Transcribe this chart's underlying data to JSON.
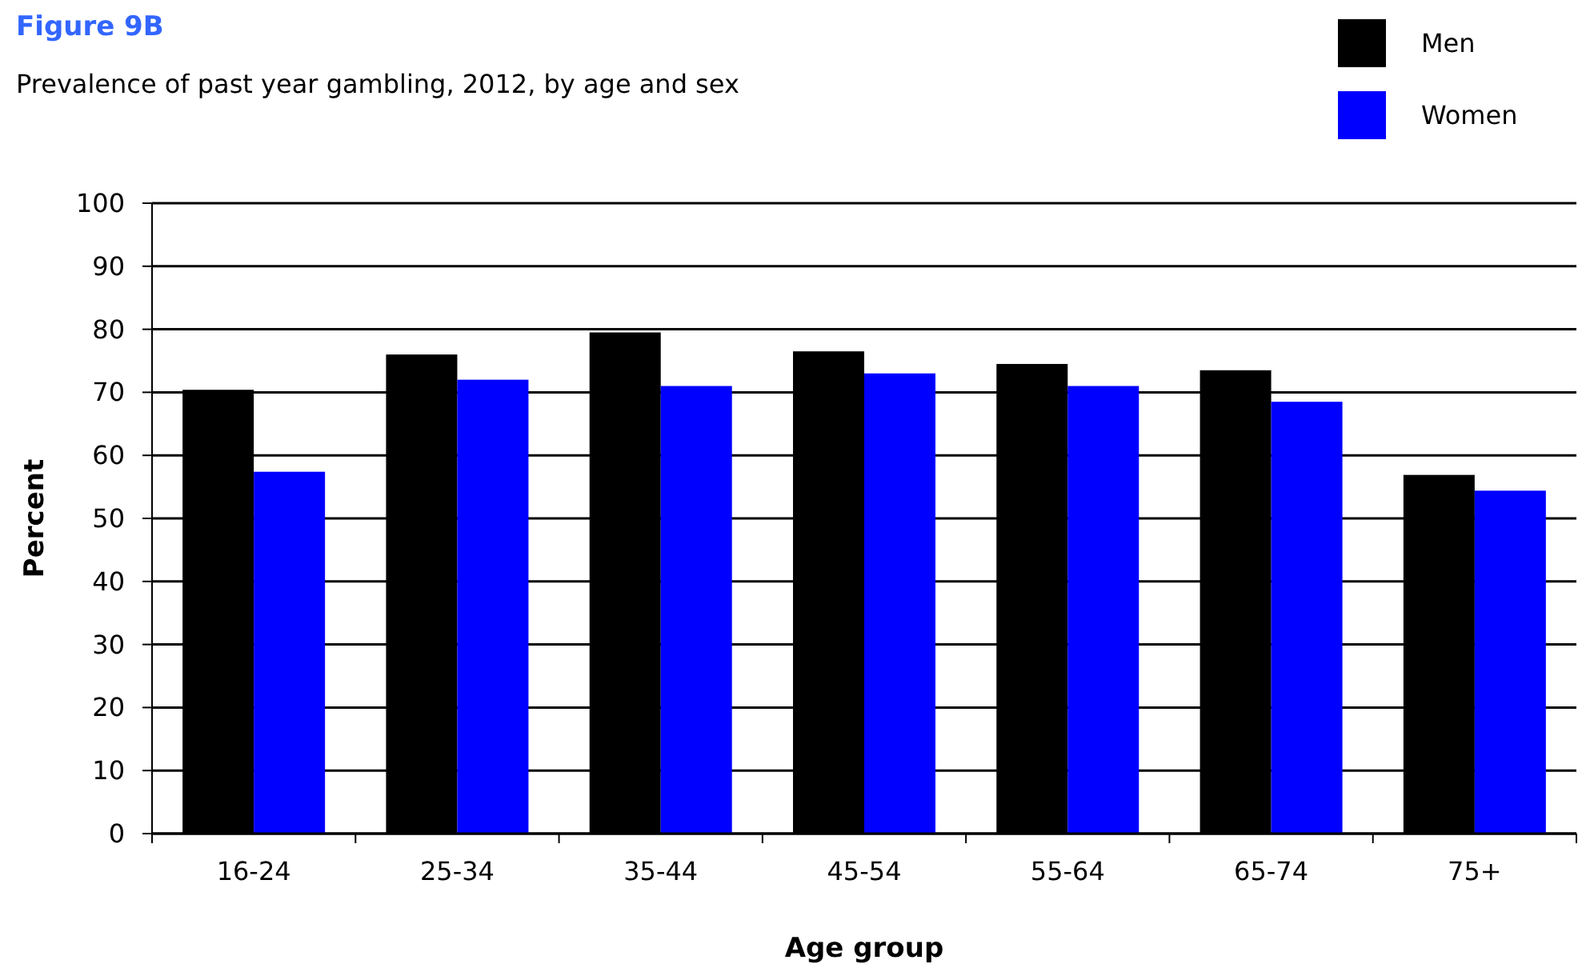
{
  "chart_data": {
    "type": "bar",
    "title": "Figure 9B",
    "subtitle": "Prevalence of past year gambling, 2012, by age and sex",
    "xlabel": "Age group",
    "ylabel": "Percent",
    "categories": [
      "16-24",
      "25-34",
      "35-44",
      "45-54",
      "55-64",
      "65-74",
      "75+"
    ],
    "series": [
      {
        "name": "Men",
        "color": "#000000",
        "values": [
          70.4,
          76,
          79.5,
          76.5,
          74.5,
          73.5,
          56.9
        ]
      },
      {
        "name": "Women",
        "color": "#0000ff",
        "values": [
          57.4,
          72,
          71,
          73,
          71,
          68.5,
          54.4
        ]
      }
    ],
    "ylim": [
      0,
      100
    ],
    "yticks": [
      0,
      10,
      20,
      30,
      40,
      50,
      60,
      70,
      80,
      90,
      100
    ],
    "grid": "y",
    "legend": "top right"
  }
}
